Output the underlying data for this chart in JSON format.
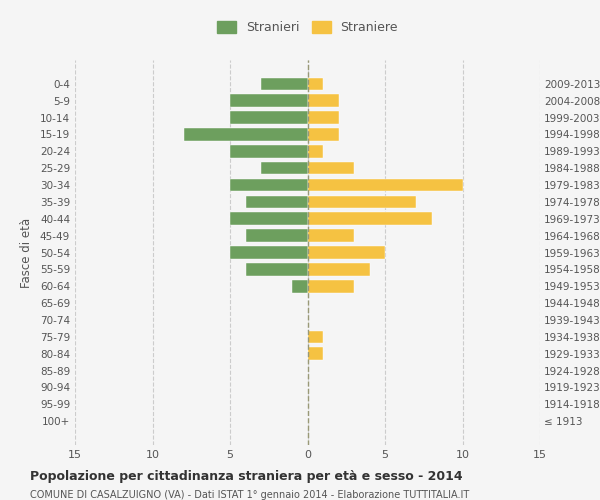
{
  "age_groups": [
    "100+",
    "95-99",
    "90-94",
    "85-89",
    "80-84",
    "75-79",
    "70-74",
    "65-69",
    "60-64",
    "55-59",
    "50-54",
    "45-49",
    "40-44",
    "35-39",
    "30-34",
    "25-29",
    "20-24",
    "15-19",
    "10-14",
    "5-9",
    "0-4"
  ],
  "birth_years": [
    "≤ 1913",
    "1914-1918",
    "1919-1923",
    "1924-1928",
    "1929-1933",
    "1934-1938",
    "1939-1943",
    "1944-1948",
    "1949-1953",
    "1954-1958",
    "1959-1963",
    "1964-1968",
    "1969-1973",
    "1974-1978",
    "1979-1983",
    "1984-1988",
    "1989-1993",
    "1994-1998",
    "1999-2003",
    "2004-2008",
    "2009-2013"
  ],
  "males": [
    0,
    0,
    0,
    0,
    0,
    0,
    0,
    0,
    1,
    4,
    5,
    4,
    5,
    4,
    5,
    3,
    5,
    8,
    5,
    5,
    3
  ],
  "females": [
    0,
    0,
    0,
    0,
    1,
    1,
    0,
    0,
    3,
    4,
    5,
    3,
    8,
    7,
    10,
    3,
    1,
    2,
    2,
    2,
    1
  ],
  "male_color": "#6d9f5e",
  "female_color": "#f5c242",
  "background_color": "#f5f5f5",
  "title": "Popolazione per cittadinanza straniera per età e sesso - 2014",
  "subtitle": "COMUNE DI CASALZUIGNO (VA) - Dati ISTAT 1° gennaio 2014 - Elaborazione TUTTITALIA.IT",
  "ylabel_left": "Fasce di età",
  "legend_male": "Stranieri",
  "legend_female": "Straniere",
  "xlim": 15,
  "grid_color": "#cccccc"
}
